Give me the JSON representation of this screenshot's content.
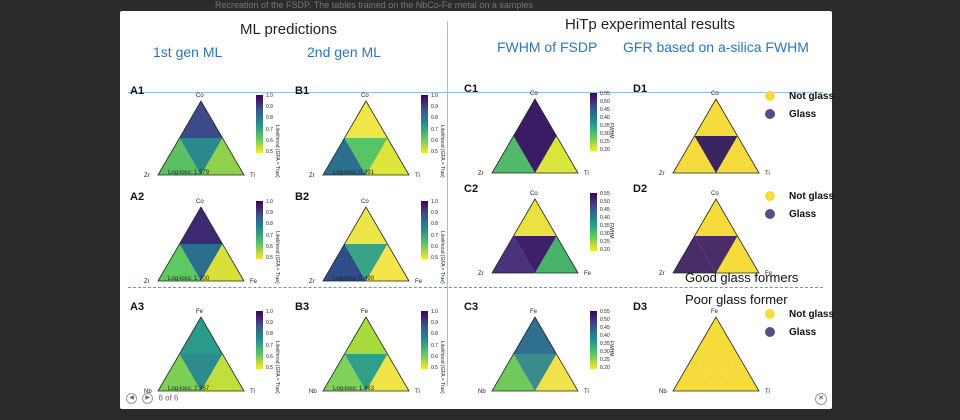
{
  "caption_snippet": "Recreation of the FSDP. The tables trained on the NbCo-Fe metal on a samples",
  "headers": {
    "ml": "ML predictions",
    "hitp": "HiTp experimental results",
    "gen1": "1st gen ML",
    "gen2": "2nd gen ML",
    "fwhm": "FWHM of FSDP",
    "gfr": "GFR based on a-silica FWHM"
  },
  "panels": {
    "A1": {
      "label": "A1",
      "top": "Co",
      "left": "Zr",
      "right": "Ti",
      "logloss": "Log-loss: 1.579"
    },
    "A2": {
      "label": "A2",
      "top": "Co",
      "left": "Zr",
      "right": "Fe",
      "logloss": "Log-loss: 1.700"
    },
    "A3": {
      "label": "A3",
      "top": "Fe",
      "left": "Nb",
      "right": "Ti",
      "logloss": "Log-loss: 2.367"
    },
    "B1": {
      "label": "B1",
      "top": "Co",
      "left": "Zr",
      "right": "Ti",
      "logloss": "Log-loss: 0.391"
    },
    "B2": {
      "label": "B2",
      "top": "Co",
      "left": "Zr",
      "right": "Fe",
      "logloss": "Log-loss: 0.490"
    },
    "B3": {
      "label": "B3",
      "top": "Fe",
      "left": "Nb",
      "right": "Ti",
      "logloss": "Log-loss: 1.483"
    },
    "C1": {
      "label": "C1",
      "top": "Co",
      "left": "Zr",
      "right": "Ti"
    },
    "C2": {
      "label": "C2",
      "top": "Co",
      "left": "Zr",
      "right": "Fe"
    },
    "C3": {
      "label": "C3",
      "top": "Fe",
      "left": "Nb",
      "right": "Ti"
    },
    "D1": {
      "label": "D1",
      "top": "Co",
      "left": "Zr",
      "right": "Ti"
    },
    "D2": {
      "label": "D2",
      "top": "Co",
      "left": "Zr",
      "right": "Fe"
    },
    "D3": {
      "label": "D3",
      "top": "Fe",
      "left": "Nb",
      "right": "Ti"
    }
  },
  "colorbar_ml": {
    "label": "Likelihood (GFA = True)",
    "ticks": [
      "1.0",
      "0.9",
      "0.8",
      "0.7",
      "0.6",
      "0.5"
    ]
  },
  "colorbar_fwhm": {
    "label": "FWHM",
    "ticks": [
      "0.55",
      "0.50",
      "0.45",
      "0.40",
      "0.35",
      "0.30",
      "0.25",
      "0.20"
    ]
  },
  "legend": {
    "not_glass": "Not glass",
    "glass": "Glass"
  },
  "notes": {
    "good": "Good glass formers",
    "poor": "Poor glass former"
  },
  "colors": {
    "not_glass": "#f5dc3c",
    "glass": "#5a4a86",
    "accent": "#2e75b6"
  },
  "footer": {
    "page": "6 of 6",
    "prev_icon": "left-arrow-icon",
    "next_icon": "right-arrow-icon",
    "close_icon": "close-icon"
  }
}
